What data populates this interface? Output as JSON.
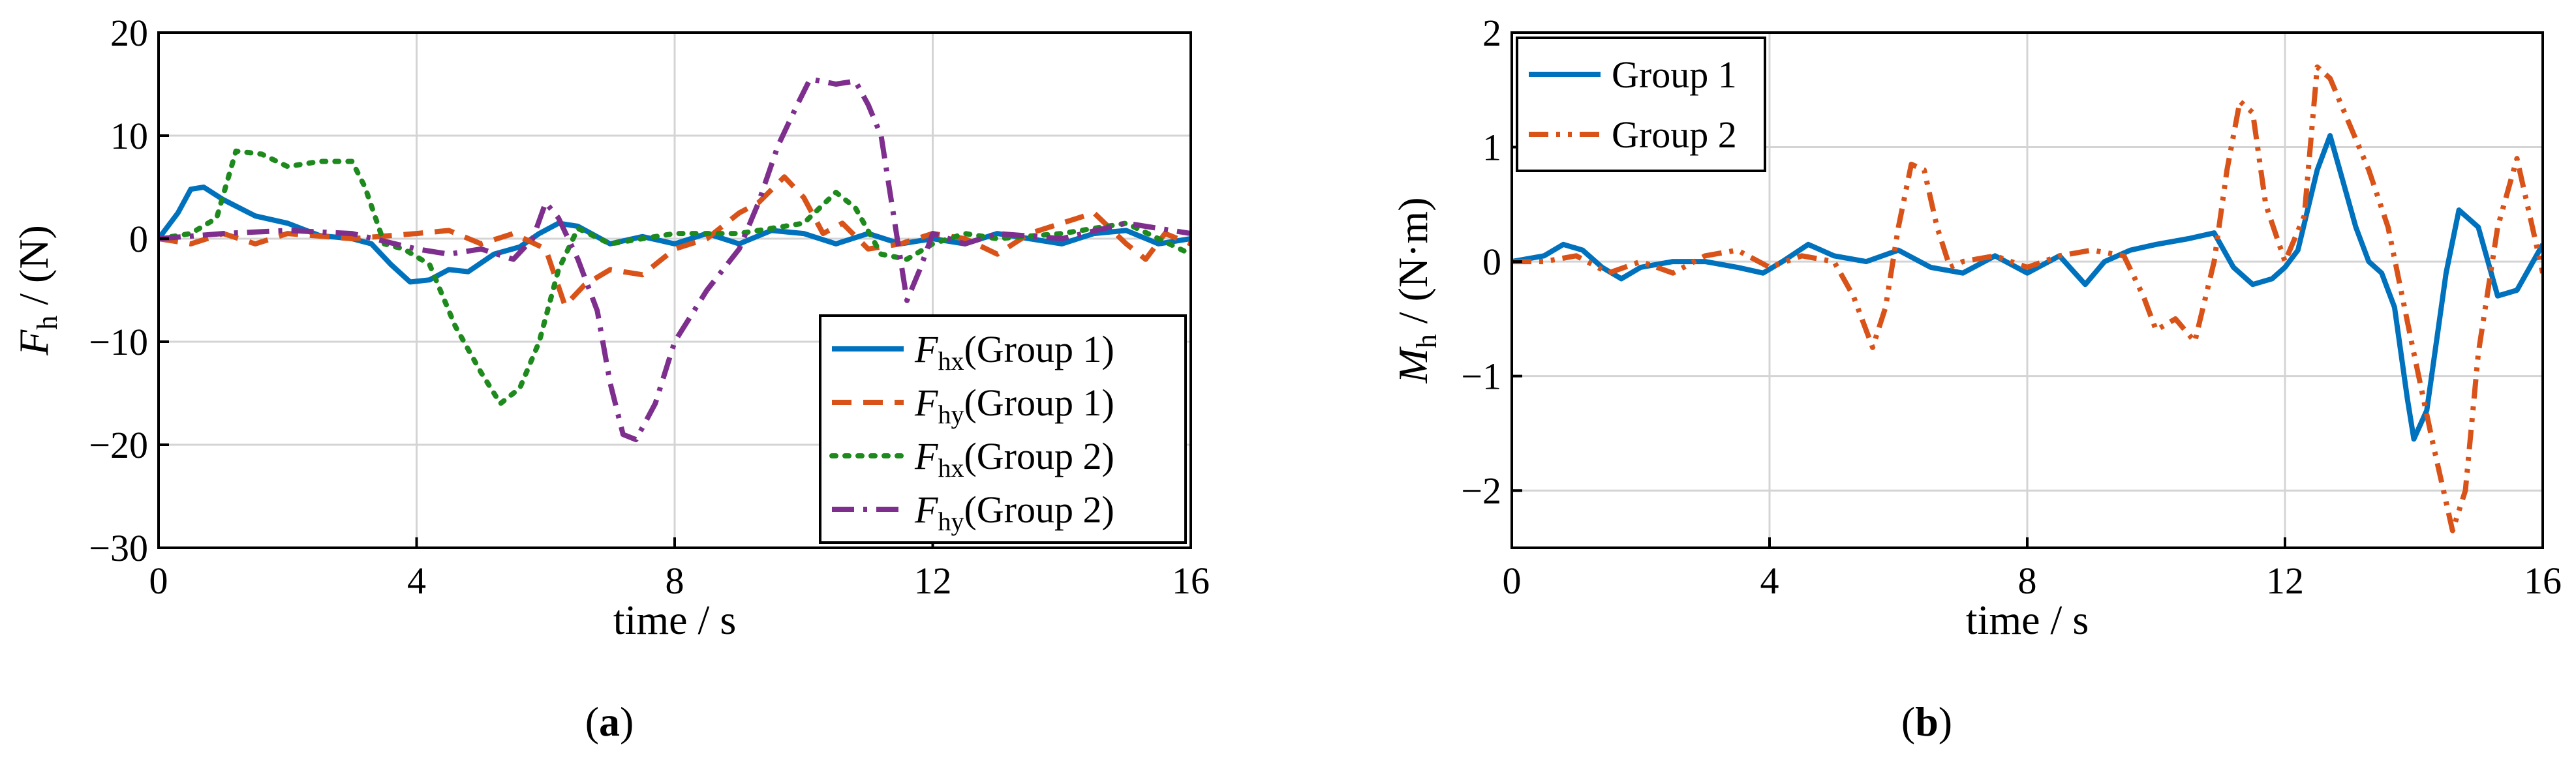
{
  "figure": {
    "panels": [
      {
        "caption_letter": "a"
      },
      {
        "caption_letter": "b"
      }
    ]
  },
  "chart_data": [
    {
      "type": "line",
      "panel": "a",
      "xlabel": "time / s",
      "ylabel": {
        "main": "F",
        "sub": "h",
        "unit": " / (N)"
      },
      "xlim": [
        0,
        16
      ],
      "ylim": [
        -30,
        20
      ],
      "xticks": [
        0,
        4,
        8,
        12,
        16
      ],
      "yticks": [
        -30,
        -20,
        -10,
        0,
        10,
        20
      ],
      "grid": true,
      "legend_position": "bottom-right",
      "series": [
        {
          "name": "Fhx(Group 1)",
          "label_main": "F",
          "label_sub": "hx",
          "label_rest": "(Group 1)",
          "color": "#0072BD",
          "style": "solid",
          "x": [
            0,
            0.3,
            0.5,
            0.7,
            1.0,
            1.5,
            2.0,
            2.5,
            3.0,
            3.3,
            3.6,
            3.9,
            4.2,
            4.5,
            4.8,
            5.2,
            5.6,
            5.9,
            6.2,
            6.5,
            7.0,
            7.5,
            8.0,
            8.5,
            9.0,
            9.5,
            10.0,
            10.5,
            11.0,
            11.5,
            12.0,
            12.5,
            13.0,
            13.5,
            14.0,
            14.5,
            15.0,
            15.5,
            16.0
          ],
          "y": [
            0,
            2.5,
            4.8,
            5.0,
            3.8,
            2.2,
            1.5,
            0.3,
            0,
            -0.5,
            -2.5,
            -4.2,
            -4.0,
            -3.0,
            -3.2,
            -1.5,
            -0.8,
            0.5,
            1.5,
            1.2,
            -0.5,
            0.2,
            -0.5,
            0.5,
            -0.5,
            0.8,
            0.5,
            -0.5,
            0.5,
            -0.5,
            0,
            -0.5,
            0.5,
            0,
            -0.5,
            0.5,
            0.8,
            -0.5,
            0
          ]
        },
        {
          "name": "Fhy(Group 1)",
          "label_main": "F",
          "label_sub": "hy",
          "label_rest": "(Group 1)",
          "color": "#D95319",
          "style": "dashed",
          "x": [
            0,
            0.5,
            1.0,
            1.5,
            2.0,
            3.0,
            4.0,
            4.5,
            5.0,
            5.5,
            6.0,
            6.3,
            6.6,
            7.0,
            7.5,
            8.0,
            8.5,
            9.0,
            9.3,
            9.7,
            10.0,
            10.3,
            10.6,
            11.0,
            11.5,
            12.0,
            12.5,
            13.0,
            13.5,
            14.0,
            14.5,
            15.0,
            15.3,
            15.6,
            16.0
          ],
          "y": [
            0,
            -0.5,
            0.5,
            -0.5,
            0.5,
            0,
            0.5,
            0.8,
            -0.5,
            0.5,
            -1.0,
            -6.5,
            -4.5,
            -3.0,
            -3.5,
            -1.0,
            0,
            2.5,
            3.5,
            6.0,
            4.0,
            0.5,
            1.5,
            -1.0,
            -0.5,
            0.5,
            0,
            -1.5,
            0.5,
            1.5,
            2.5,
            -0.5,
            -2.0,
            0.5,
            -0.5
          ]
        },
        {
          "name": "Fhx(Group 2)",
          "label_main": "F",
          "label_sub": "hx",
          "label_rest": "(Group 2)",
          "color": "#1E8A1E",
          "style": "dotted",
          "x": [
            0,
            0.5,
            0.9,
            1.2,
            1.6,
            2.0,
            2.5,
            3.0,
            3.2,
            3.5,
            3.8,
            4.2,
            4.6,
            5.0,
            5.3,
            5.6,
            5.9,
            6.2,
            6.5,
            7.0,
            8.0,
            9.0,
            10.0,
            10.5,
            10.8,
            11.2,
            11.6,
            12.0,
            12.5,
            13.0,
            14.0,
            15.0,
            16.0
          ],
          "y": [
            0,
            0.5,
            2.0,
            8.5,
            8.2,
            7.0,
            7.5,
            7.5,
            5.0,
            -0.5,
            -1.0,
            -2.5,
            -8.5,
            -13.0,
            -16.0,
            -14.5,
            -10.0,
            -3.0,
            1.0,
            -0.5,
            0.5,
            0.5,
            1.5,
            4.5,
            3.0,
            -1.5,
            -2.0,
            -0.5,
            0.5,
            0,
            0.5,
            1.5,
            -1.5
          ]
        },
        {
          "name": "Fhy(Group 2)",
          "label_main": "F",
          "label_sub": "hy",
          "label_rest": "(Group 2)",
          "color": "#7E2F8E",
          "style": "dashdot",
          "x": [
            0,
            1.0,
            2.0,
            3.0,
            4.0,
            4.5,
            5.0,
            5.5,
            5.8,
            6.0,
            6.2,
            6.5,
            6.8,
            7.0,
            7.2,
            7.4,
            7.7,
            8.0,
            8.5,
            9.0,
            9.3,
            9.6,
            9.9,
            10.1,
            10.5,
            10.8,
            11.0,
            11.2,
            11.4,
            11.6,
            11.8,
            12.0,
            12.5,
            13.0,
            14.0,
            15.0,
            16.0
          ],
          "y": [
            0,
            0.5,
            0.8,
            0.5,
            -1.0,
            -1.5,
            -1.0,
            -2.0,
            0,
            3.5,
            2.0,
            -2.0,
            -7.0,
            -14.0,
            -19.0,
            -19.5,
            -16.0,
            -10.0,
            -5.0,
            -1.0,
            3.5,
            9.0,
            13.0,
            15.5,
            15.0,
            15.3,
            13.0,
            10.0,
            2.0,
            -6.0,
            -3.0,
            0.5,
            -0.5,
            0.5,
            0,
            1.5,
            0.5
          ]
        }
      ]
    },
    {
      "type": "line",
      "panel": "b",
      "xlabel": "time / s",
      "ylabel": {
        "main": "M",
        "sub": "h",
        "unit": " / (N·m)"
      },
      "xlim": [
        0,
        16
      ],
      "ylim": [
        -2.5,
        2
      ],
      "xticks": [
        0,
        4,
        8,
        12,
        16
      ],
      "yticks": [
        -2,
        -1,
        0,
        1,
        2
      ],
      "grid": true,
      "legend_position": "top-left",
      "series": [
        {
          "name": "Group 1",
          "color": "#0072BD",
          "style": "solid",
          "x": [
            0,
            0.5,
            0.8,
            1.1,
            1.4,
            1.7,
            2.0,
            2.5,
            3.0,
            3.5,
            3.9,
            4.2,
            4.6,
            5.0,
            5.5,
            6.0,
            6.5,
            7.0,
            7.5,
            8.0,
            8.5,
            8.9,
            9.2,
            9.6,
            10.0,
            10.5,
            10.9,
            11.2,
            11.5,
            11.8,
            12.0,
            12.2,
            12.5,
            12.7,
            12.9,
            13.1,
            13.3,
            13.5,
            13.7,
            13.9,
            14.0,
            14.2,
            14.5,
            14.7,
            15.0,
            15.3,
            15.6,
            16.0
          ],
          "y": [
            0,
            0.05,
            0.15,
            0.1,
            -0.05,
            -0.15,
            -0.05,
            0,
            0,
            -0.05,
            -0.1,
            0,
            0.15,
            0.05,
            0,
            0.1,
            -0.05,
            -0.1,
            0.05,
            -0.1,
            0.05,
            -0.2,
            0,
            0.1,
            0.15,
            0.2,
            0.25,
            -0.05,
            -0.2,
            -0.15,
            -0.05,
            0.1,
            0.8,
            1.1,
            0.7,
            0.3,
            0.0,
            -0.1,
            -0.4,
            -1.2,
            -1.55,
            -1.3,
            -0.1,
            0.45,
            0.3,
            -0.3,
            -0.25,
            0.15
          ]
        },
        {
          "name": "Group 2",
          "color": "#D95319",
          "style": "dashdotdot",
          "x": [
            0,
            0.5,
            1.0,
            1.5,
            2.0,
            2.5,
            3.0,
            3.5,
            4.0,
            4.5,
            5.0,
            5.3,
            5.6,
            5.8,
            6.0,
            6.2,
            6.4,
            6.6,
            6.8,
            7.0,
            7.5,
            8.0,
            8.5,
            9.0,
            9.5,
            9.8,
            10.0,
            10.3,
            10.6,
            10.9,
            11.1,
            11.3,
            11.5,
            11.7,
            12.0,
            12.3,
            12.5,
            12.7,
            13.0,
            13.3,
            13.6,
            14.0,
            14.3,
            14.6,
            14.8,
            15.0,
            15.3,
            15.6,
            16.0
          ],
          "y": [
            0,
            0,
            0.05,
            -0.1,
            0,
            -0.1,
            0.05,
            0.1,
            -0.05,
            0.05,
            0,
            -0.3,
            -0.75,
            -0.4,
            0.3,
            0.85,
            0.8,
            0.3,
            -0.05,
            0,
            0.05,
            -0.05,
            0.05,
            0.1,
            0.05,
            -0.3,
            -0.6,
            -0.5,
            -0.7,
            0.0,
            0.8,
            1.4,
            1.3,
            0.5,
            0.0,
            0.4,
            1.7,
            1.6,
            1.2,
            0.8,
            0.3,
            -0.8,
            -1.6,
            -2.35,
            -2.0,
            -0.8,
            0.3,
            0.9,
            -0.1
          ]
        }
      ]
    }
  ]
}
